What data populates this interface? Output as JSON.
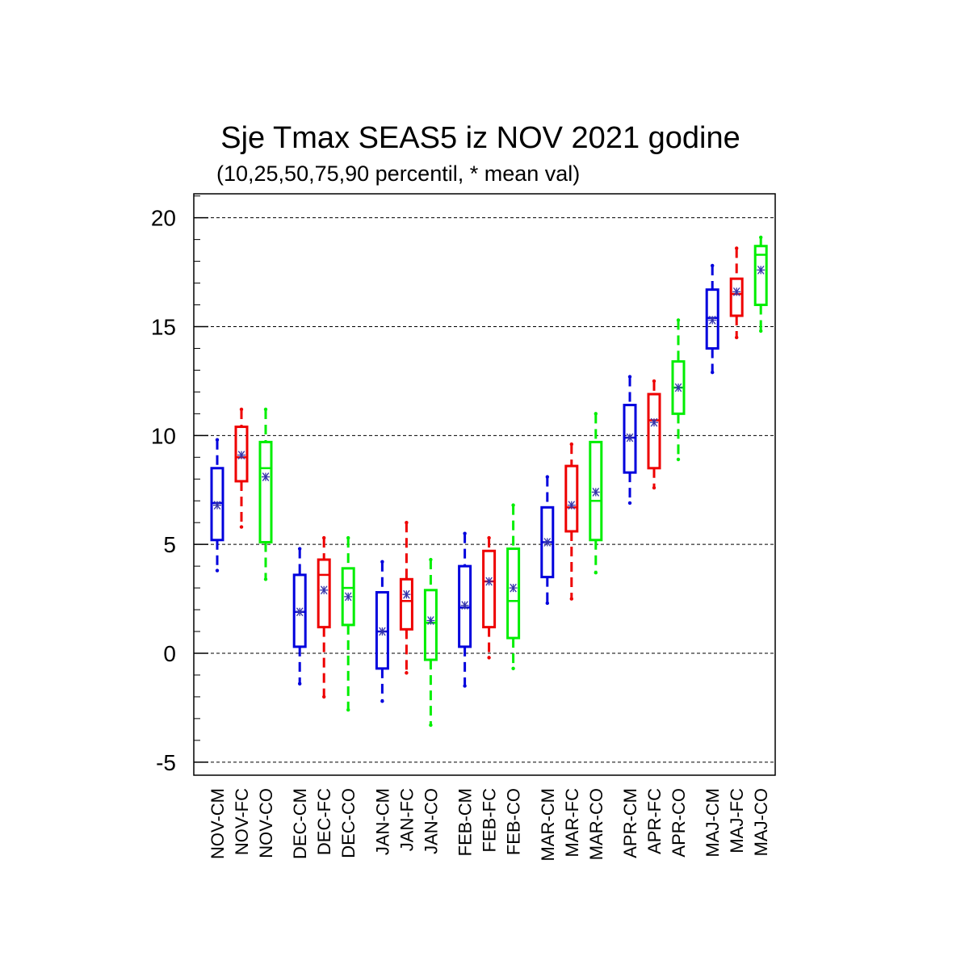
{
  "chart_data": {
    "type": "box",
    "title": "Sje Tmax SEAS5 iz NOV 2021 godine",
    "subtitle": "(10,25,50,75,90 percentil, * mean val)",
    "xlabel": "",
    "ylabel": "",
    "ylim": [
      -5.6,
      21.1
    ],
    "yticks": [
      -5,
      0,
      5,
      10,
      15,
      20
    ],
    "grid": "dashed-horizontal",
    "legend": "none",
    "colors": {
      "CM": "#0000dd",
      "FC": "#ee0000",
      "CO": "#00ee00",
      "mean": "#3333aa"
    },
    "categories": [
      "NOV-CM",
      "NOV-FC",
      "NOV-CO",
      "DEC-CM",
      "DEC-FC",
      "DEC-CO",
      "JAN-CM",
      "JAN-FC",
      "JAN-CO",
      "FEB-CM",
      "FEB-FC",
      "FEB-CO",
      "MAR-CM",
      "MAR-FC",
      "MAR-CO",
      "APR-CM",
      "APR-FC",
      "APR-CO",
      "MAJ-CM",
      "MAJ-FC",
      "MAJ-CO"
    ],
    "boxes": [
      {
        "label": "NOV-CM",
        "group": "CM",
        "p10": 3.8,
        "p25": 5.2,
        "p50": 6.9,
        "p75": 8.5,
        "p90": 9.8,
        "mean": 6.8
      },
      {
        "label": "NOV-FC",
        "group": "FC",
        "p10": 5.8,
        "p25": 7.9,
        "p50": 9.0,
        "p75": 10.4,
        "p90": 11.2,
        "mean": 9.1
      },
      {
        "label": "NOV-CO",
        "group": "CO",
        "p10": 3.4,
        "p25": 5.1,
        "p50": 8.5,
        "p75": 9.7,
        "p90": 11.2,
        "mean": 8.1
      },
      {
        "label": "DEC-CM",
        "group": "CM",
        "p10": -1.4,
        "p25": 0.3,
        "p50": 1.9,
        "p75": 3.6,
        "p90": 4.8,
        "mean": 1.9
      },
      {
        "label": "DEC-FC",
        "group": "FC",
        "p10": -2.0,
        "p25": 1.2,
        "p50": 3.6,
        "p75": 4.3,
        "p90": 5.3,
        "mean": 2.9
      },
      {
        "label": "DEC-CO",
        "group": "CO",
        "p10": -2.6,
        "p25": 1.3,
        "p50": 3.0,
        "p75": 3.9,
        "p90": 5.3,
        "mean": 2.6
      },
      {
        "label": "JAN-CM",
        "group": "CM",
        "p10": -2.2,
        "p25": -0.7,
        "p50": 1.0,
        "p75": 2.8,
        "p90": 4.2,
        "mean": 1.0
      },
      {
        "label": "JAN-FC",
        "group": "FC",
        "p10": -0.9,
        "p25": 1.1,
        "p50": 2.4,
        "p75": 3.4,
        "p90": 6.0,
        "mean": 2.7
      },
      {
        "label": "JAN-CO",
        "group": "CO",
        "p10": -3.3,
        "p25": -0.3,
        "p50": 1.4,
        "p75": 2.9,
        "p90": 4.3,
        "mean": 1.5
      },
      {
        "label": "FEB-CM",
        "group": "CM",
        "p10": -1.5,
        "p25": 0.3,
        "p50": 2.1,
        "p75": 4.0,
        "p90": 5.5,
        "mean": 2.2
      },
      {
        "label": "FEB-FC",
        "group": "FC",
        "p10": -0.2,
        "p25": 1.2,
        "p50": 3.3,
        "p75": 4.7,
        "p90": 5.3,
        "mean": 3.3
      },
      {
        "label": "FEB-CO",
        "group": "CO",
        "p10": -0.7,
        "p25": 0.7,
        "p50": 2.4,
        "p75": 4.8,
        "p90": 6.8,
        "mean": 3.0
      },
      {
        "label": "MAR-CM",
        "group": "CM",
        "p10": 2.3,
        "p25": 3.5,
        "p50": 5.1,
        "p75": 6.7,
        "p90": 8.1,
        "mean": 5.1
      },
      {
        "label": "MAR-FC",
        "group": "FC",
        "p10": 2.5,
        "p25": 5.6,
        "p50": 6.7,
        "p75": 8.6,
        "p90": 9.6,
        "mean": 6.8
      },
      {
        "label": "MAR-CO",
        "group": "CO",
        "p10": 3.7,
        "p25": 5.2,
        "p50": 7.0,
        "p75": 9.7,
        "p90": 11.0,
        "mean": 7.4
      },
      {
        "label": "APR-CM",
        "group": "CM",
        "p10": 6.9,
        "p25": 8.3,
        "p50": 9.9,
        "p75": 11.4,
        "p90": 12.7,
        "mean": 9.9
      },
      {
        "label": "APR-FC",
        "group": "FC",
        "p10": 7.6,
        "p25": 8.5,
        "p50": 10.7,
        "p75": 11.9,
        "p90": 12.5,
        "mean": 10.6
      },
      {
        "label": "APR-CO",
        "group": "CO",
        "p10": 8.9,
        "p25": 11.0,
        "p50": 12.2,
        "p75": 13.4,
        "p90": 15.3,
        "mean": 12.2
      },
      {
        "label": "MAJ-CM",
        "group": "CM",
        "p10": 12.9,
        "p25": 14.0,
        "p50": 15.4,
        "p75": 16.7,
        "p90": 17.8,
        "mean": 15.3
      },
      {
        "label": "MAJ-FC",
        "group": "FC",
        "p10": 14.5,
        "p25": 15.5,
        "p50": 16.5,
        "p75": 17.2,
        "p90": 18.6,
        "mean": 16.6
      },
      {
        "label": "MAJ-CO",
        "group": "CO",
        "p10": 14.8,
        "p25": 16.0,
        "p50": 18.3,
        "p75": 18.7,
        "p90": 19.1,
        "mean": 17.6
      }
    ]
  }
}
